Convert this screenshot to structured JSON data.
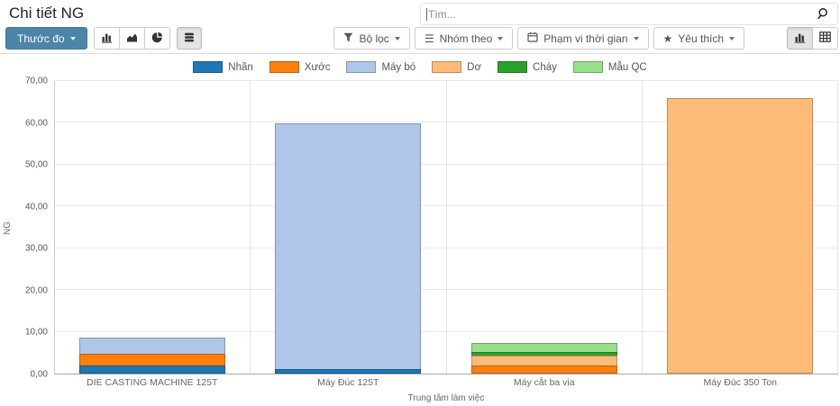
{
  "header": {
    "title": "Chi tiết NG"
  },
  "search": {
    "placeholder": "Tìm...",
    "icon": "magnifier-icon"
  },
  "measures": {
    "label": "Thước đo"
  },
  "chart_type_toolbar": {
    "icons": [
      "bar-chart-icon",
      "area-chart-icon",
      "pie-chart-icon"
    ],
    "active": "bar-chart-icon",
    "stacked_toggle_icon": "stacked-bars-icon",
    "stacked_active": true
  },
  "filter_buttons": {
    "filters": "Bộ lọc",
    "group_by": "Nhóm theo",
    "time_range": "Phạm vi thời gian",
    "favorites": "Yêu thích"
  },
  "view_switcher": {
    "options": [
      "graph",
      "pivot"
    ],
    "active": "graph"
  },
  "chart_data": {
    "type": "bar",
    "stacked": true,
    "grid": true,
    "legend_position": "top",
    "xlabel": "Trung tâm làm việc",
    "ylabel": "NG",
    "ylim": [
      0,
      70
    ],
    "ytick_labels": [
      "0,00",
      "10,00",
      "20,00",
      "30,00",
      "40,00",
      "50,00",
      "60,00",
      "70,00"
    ],
    "categories": [
      "DIE CASTING MACHINE 125T",
      "Máy Đúc 125T",
      "Máy cắt ba via",
      "Máy Đúc 350 Ton"
    ],
    "series": [
      {
        "name": "Nhãn",
        "color": "#1f77b4",
        "values": [
          2,
          1,
          0,
          0
        ]
      },
      {
        "name": "Xước",
        "color": "#ff7f0e",
        "values": [
          3,
          0,
          2,
          0
        ]
      },
      {
        "name": "Máy bó",
        "color": "#aec7e8",
        "values": [
          4,
          59,
          0,
          0
        ]
      },
      {
        "name": "Dơ",
        "color": "#ffbb78",
        "values": [
          0,
          0,
          2.5,
          66
        ]
      },
      {
        "name": "Cháy",
        "color": "#2ca02c",
        "values": [
          0,
          0,
          1,
          0
        ]
      },
      {
        "name": "Mẫu QC",
        "color": "#98df8a",
        "values": [
          0,
          0,
          2.5,
          0
        ]
      }
    ]
  }
}
